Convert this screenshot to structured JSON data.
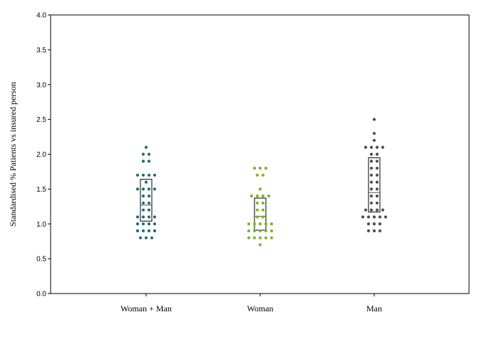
{
  "chart_data": {
    "type": "scatter",
    "subtype": "dot-strip with box (interquartile range and median)",
    "ylabel": "Standardised % Patients vs insured person",
    "xlabel": "",
    "ylim": [
      0,
      4
    ],
    "yticks": [
      "0.0",
      "0.5",
      "1.0",
      "1.5",
      "2.0",
      "2.5",
      "3.0",
      "3.5",
      "4.0"
    ],
    "grid": false,
    "legend": "none",
    "categories": [
      "Woman + Man",
      "Woman",
      "Man"
    ],
    "series": [
      {
        "category": "Woman + Man",
        "color": "#1f6b75",
        "box": {
          "q1": 1.04,
          "median": 1.27,
          "q3": 1.64
        },
        "points": [
          {
            "y": 2.1,
            "n": 1
          },
          {
            "y": 2.0,
            "n": 2
          },
          {
            "y": 1.9,
            "n": 2
          },
          {
            "y": 1.7,
            "n": 4
          },
          {
            "y": 1.6,
            "n": 1
          },
          {
            "y": 1.5,
            "n": 4
          },
          {
            "y": 1.4,
            "n": 2
          },
          {
            "y": 1.3,
            "n": 2
          },
          {
            "y": 1.2,
            "n": 2
          },
          {
            "y": 1.1,
            "n": 4
          },
          {
            "y": 1.0,
            "n": 4
          },
          {
            "y": 0.9,
            "n": 4
          },
          {
            "y": 0.8,
            "n": 3
          }
        ]
      },
      {
        "category": "Woman",
        "color": "#7ab526",
        "box": {
          "q1": 0.91,
          "median": 1.11,
          "q3": 1.37
        },
        "points": [
          {
            "y": 1.8,
            "n": 3
          },
          {
            "y": 1.7,
            "n": 2
          },
          {
            "y": 1.5,
            "n": 1
          },
          {
            "y": 1.4,
            "n": 4
          },
          {
            "y": 1.3,
            "n": 2
          },
          {
            "y": 1.2,
            "n": 2
          },
          {
            "y": 1.1,
            "n": 2
          },
          {
            "y": 1.0,
            "n": 5
          },
          {
            "y": 0.9,
            "n": 5
          },
          {
            "y": 0.8,
            "n": 5
          },
          {
            "y": 0.7,
            "n": 1
          }
        ]
      },
      {
        "category": "Man",
        "color": "#4d4d4d",
        "box": {
          "q1": 1.17,
          "median": 1.45,
          "q3": 1.95
        },
        "points": [
          {
            "y": 2.5,
            "n": 1
          },
          {
            "y": 2.3,
            "n": 1
          },
          {
            "y": 2.2,
            "n": 1
          },
          {
            "y": 2.1,
            "n": 4
          },
          {
            "y": 2.0,
            "n": 2
          },
          {
            "y": 1.9,
            "n": 2
          },
          {
            "y": 1.8,
            "n": 2
          },
          {
            "y": 1.7,
            "n": 2
          },
          {
            "y": 1.6,
            "n": 2
          },
          {
            "y": 1.5,
            "n": 2
          },
          {
            "y": 1.4,
            "n": 2
          },
          {
            "y": 1.3,
            "n": 2
          },
          {
            "y": 1.2,
            "n": 4
          },
          {
            "y": 1.1,
            "n": 5
          },
          {
            "y": 1.0,
            "n": 3
          },
          {
            "y": 0.9,
            "n": 3
          }
        ]
      }
    ]
  }
}
